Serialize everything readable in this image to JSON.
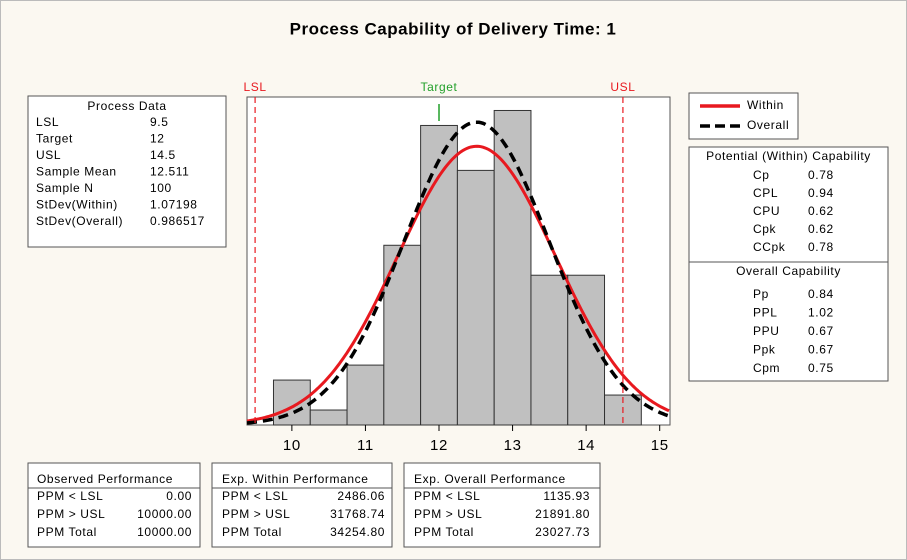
{
  "chart_data": {
    "type": "histogram",
    "title": "Process Capability of Delivery Time: 1",
    "bins": [
      9.75,
      10.25,
      10.75,
      11.25,
      11.75,
      12.25,
      12.75,
      13.25,
      13.75,
      14.25,
      14.75
    ],
    "counts": [
      3,
      1,
      4,
      12,
      20,
      17,
      21,
      10,
      10,
      2
    ],
    "color": "#c0c0c0",
    "xlim": [
      9.39,
      15.14
    ],
    "xticks": [
      10,
      11,
      12,
      13,
      14,
      15
    ],
    "ylim": [
      0,
      21.9
    ],
    "sample_n": 100,
    "reference_lines": [
      {
        "label": "LSL",
        "value": 9.5,
        "color": "#e8191f",
        "full": true
      },
      {
        "label": "Target",
        "value": 12,
        "color": "#22a02a",
        "full": false
      },
      {
        "label": "USL",
        "value": 14.5,
        "color": "#e8191f",
        "full": true
      }
    ],
    "series": [
      {
        "name": "Within",
        "color": "#e8191f",
        "mean": 12.511,
        "sd": 1.07198,
        "dashed": false
      },
      {
        "name": "Overall",
        "color": "#000000",
        "mean": 12.511,
        "sd": 0.986517,
        "dashed": true
      }
    ]
  },
  "process_data": {
    "title": "Process Data",
    "rows": [
      [
        "LSL",
        "9.5"
      ],
      [
        "Target",
        "12"
      ],
      [
        "USL",
        "14.5"
      ],
      [
        "Sample Mean",
        "12.511"
      ],
      [
        "Sample N",
        "100"
      ],
      [
        "StDev(Within)",
        "1.07198"
      ],
      [
        "StDev(Overall)",
        "0.986517"
      ]
    ]
  },
  "potential_capability": {
    "title": "Potential (Within) Capability",
    "rows": [
      [
        "Cp",
        "0.78"
      ],
      [
        "CPL",
        "0.94"
      ],
      [
        "CPU",
        "0.62"
      ],
      [
        "Cpk",
        "0.62"
      ],
      [
        "CCpk",
        "0.78"
      ]
    ]
  },
  "overall_capability": {
    "title": "Overall Capability",
    "rows": [
      [
        "Pp",
        "0.84"
      ],
      [
        "PPL",
        "1.02"
      ],
      [
        "PPU",
        "0.67"
      ],
      [
        "Ppk",
        "0.67"
      ],
      [
        "Cpm",
        "0.75"
      ]
    ]
  },
  "observed_performance": {
    "title": "Observed Performance",
    "rows": [
      [
        "PPM < LSL",
        "0.00"
      ],
      [
        "PPM > USL",
        "10000.00"
      ],
      [
        "PPM Total",
        "10000.00"
      ]
    ]
  },
  "exp_within_performance": {
    "title": "Exp. Within Performance",
    "rows": [
      [
        "PPM < LSL",
        "2486.06"
      ],
      [
        "PPM > USL",
        "31768.74"
      ],
      [
        "PPM Total",
        "34254.80"
      ]
    ]
  },
  "exp_overall_performance": {
    "title": "Exp. Overall Performance",
    "rows": [
      [
        "PPM < LSL",
        "1135.93"
      ],
      [
        "PPM > USL",
        "21891.80"
      ],
      [
        "PPM Total",
        "23027.73"
      ]
    ]
  }
}
